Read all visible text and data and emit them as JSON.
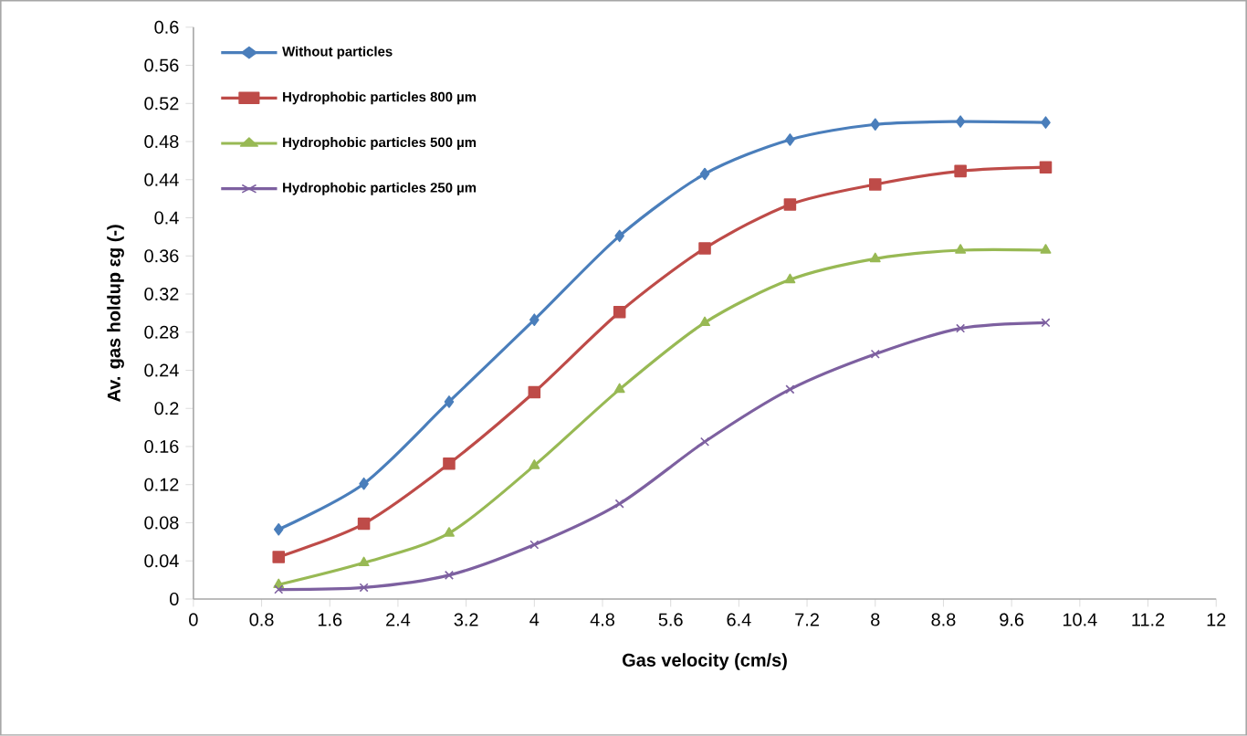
{
  "chart_data": {
    "type": "line",
    "xlabel": "Gas velocity (cm/s)",
    "ylabel": "Av. gas holdup εg (-)",
    "x": [
      1,
      2,
      3,
      4,
      5,
      6,
      7,
      8,
      9,
      10
    ],
    "xlim": [
      0,
      12
    ],
    "xticks": [
      0,
      0.8,
      1.6,
      2.4,
      3.2,
      4,
      4.8,
      5.6,
      6.4,
      7.2,
      8,
      8.8,
      9.6,
      10.4,
      11.2,
      12
    ],
    "ylim": [
      0,
      0.6
    ],
    "yticks": [
      0,
      0.04,
      0.08,
      0.12,
      0.16,
      0.2,
      0.24,
      0.28,
      0.32,
      0.36,
      0.4,
      0.44,
      0.48,
      0.52,
      0.56,
      0.6
    ],
    "grid": false,
    "legend": "top left",
    "series": [
      {
        "name": "Without particles",
        "color": "#4a7ebb",
        "marker": "diamond",
        "values": [
          0.073,
          0.121,
          0.207,
          0.293,
          0.381,
          0.446,
          0.482,
          0.498,
          0.501,
          0.5
        ]
      },
      {
        "name": "Hydrophobic particles 800 µm",
        "color": "#be4b48",
        "marker": "square",
        "values": [
          0.044,
          0.079,
          0.142,
          0.217,
          0.301,
          0.368,
          0.414,
          0.435,
          0.449,
          0.453
        ]
      },
      {
        "name": "Hydrophobic particles 500 µm",
        "color": "#98b954",
        "marker": "triangle",
        "values": [
          0.015,
          0.038,
          0.069,
          0.14,
          0.22,
          0.29,
          0.335,
          0.357,
          0.366,
          0.366
        ]
      },
      {
        "name": "Hydrophobic particles 250 µm",
        "color": "#7d60a0",
        "marker": "cross",
        "values": [
          0.01,
          0.012,
          0.025,
          0.057,
          0.1,
          0.165,
          0.22,
          0.257,
          0.284,
          0.29
        ]
      }
    ]
  }
}
